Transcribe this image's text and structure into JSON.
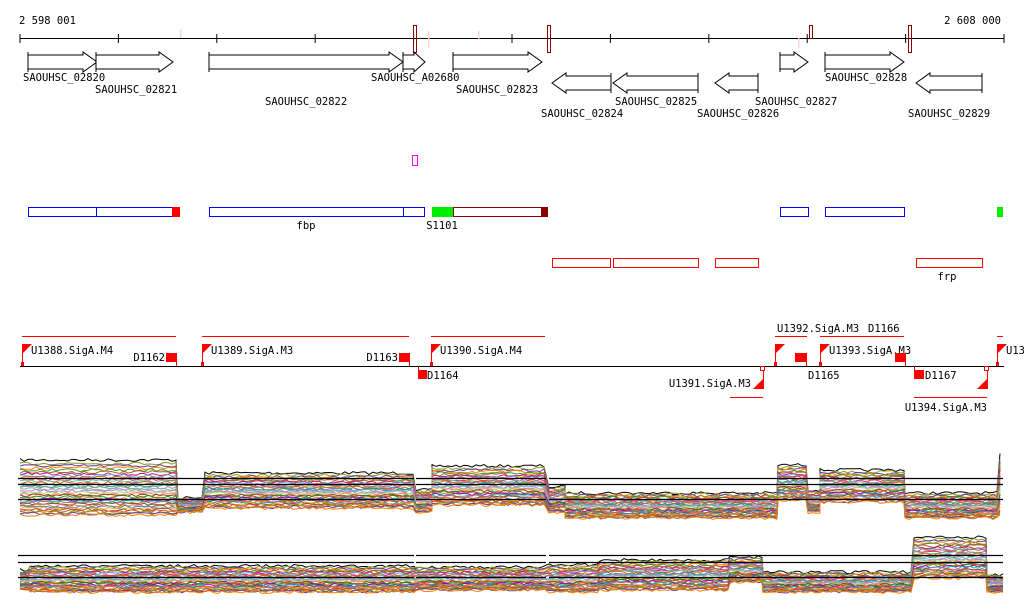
{
  "ruler": {
    "start_label": "2 598 001",
    "end_label": "2 608 000"
  },
  "genes": [
    {
      "name": "SAOUHSC_02820",
      "strand": "+"
    },
    {
      "name": "SAOUHSC_02821",
      "strand": "+"
    },
    {
      "name": "SAOUHSC_02822",
      "strand": "+"
    },
    {
      "name": "SAOUHSC_A02680",
      "strand": "+"
    },
    {
      "name": "SAOUHSC_02823",
      "strand": "+"
    },
    {
      "name": "SAOUHSC_02824",
      "strand": "-"
    },
    {
      "name": "SAOUHSC_02825",
      "strand": "-"
    },
    {
      "name": "SAOUHSC_02826",
      "strand": "-"
    },
    {
      "name": "SAOUHSC_02827",
      "strand": "+"
    },
    {
      "name": "SAOUHSC_02828",
      "strand": "+"
    },
    {
      "name": "SAOUHSC_02829",
      "strand": "-"
    }
  ],
  "features": {
    "fbp": "fbp",
    "s1101": "S1101",
    "frp": "frp"
  },
  "promoters": [
    "U1388.SigA.M4",
    "U1389.SigA.M3",
    "U1390.SigA.M4",
    "U1391.SigA.M3",
    "U1392.SigA.M3",
    "U1393.SigA.M3",
    "U1394.SigA.M3",
    "U13"
  ],
  "terminators": [
    "D1162",
    "D1163",
    "D1164",
    "D1165",
    "D1166",
    "D1167"
  ],
  "colors": {
    "forward_feature": "#0000ff",
    "reverse_feature": "#ff0000",
    "marker": "#8b0000",
    "highlight": "#00ee00",
    "misc": "#ff00ff"
  }
}
